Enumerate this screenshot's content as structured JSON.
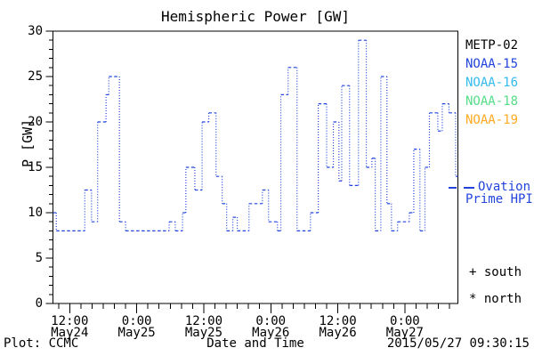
{
  "title": "Hemispheric Power [GW]",
  "footer": {
    "left": "Plot: CCMC",
    "center": "Date and Time",
    "right": "2015/05/27 09:30:15"
  },
  "legend": {
    "satellites": [
      {
        "label": "METP-02",
        "color": "#000000"
      },
      {
        "label": "NOAA-15",
        "color": "#2244dd"
      },
      {
        "label": "NOAA-16",
        "color": "#33bbee"
      },
      {
        "label": "NOAA-18",
        "color": "#55dd88"
      },
      {
        "label": "NOAA-19",
        "color": "#ffaa22"
      }
    ],
    "series_label_line1": "Ovation",
    "series_label_line2": "Prime HPI",
    "series_label_color": "#2244dd",
    "south_label": "+ south",
    "north_label": "* north"
  },
  "chart_data": {
    "type": "line",
    "style": "dotted-step",
    "title": "Hemispheric Power [GW]",
    "xlabel": "Date and Time",
    "ylabel": "P [GW]",
    "ylim": [
      0,
      30
    ],
    "y_major_ticks": [
      0,
      5,
      10,
      15,
      20,
      25,
      30
    ],
    "y_minor_step": 1,
    "grid": false,
    "legend_position": "right",
    "x_range_hours": [
      0,
      72.5
    ],
    "x_minor_step_hours": 2,
    "x_minor_first_hour": 1,
    "x_major_ticks": [
      {
        "hour": 3,
        "time": "12:00",
        "date": "May24"
      },
      {
        "hour": 15,
        "time": "0:00",
        "date": "May25"
      },
      {
        "hour": 27,
        "time": "12:00",
        "date": "May25"
      },
      {
        "hour": 39,
        "time": "0:00",
        "date": "May26"
      },
      {
        "hour": 51,
        "time": "12:00",
        "date": "May26"
      },
      {
        "hour": 63,
        "time": "0:00",
        "date": "May27"
      }
    ],
    "series": [
      {
        "name": "Ovation Prime HPI",
        "color": "#2244dd",
        "step_start_hours": [
          0,
          0.6,
          5.7,
          6.9,
          8.0,
          9.5,
          10.0,
          11.9,
          13.0,
          20.8,
          21.9,
          23.2,
          23.8,
          25.4,
          26.7,
          27.9,
          29.2,
          30.3,
          31.1,
          32.2,
          33.0,
          35.1,
          37.5,
          38.6,
          40.2,
          40.8,
          42.1,
          43.7,
          46.1,
          47.5,
          49.0,
          50.2,
          51.2,
          51.7,
          53.1,
          54.7,
          56.1,
          57.1,
          57.7,
          58.7,
          59.8,
          60.6,
          61.7,
          63.8,
          64.6,
          65.7,
          66.6,
          67.4,
          68.9,
          69.7,
          70.9,
          72.1
        ],
        "values_gw": [
          10,
          8,
          12.5,
          9,
          20,
          23,
          25,
          9,
          8,
          9,
          8,
          10,
          15,
          12.5,
          20,
          21,
          14,
          11,
          8,
          9.5,
          8,
          11,
          12.5,
          9,
          8,
          23,
          26,
          8,
          10,
          22,
          15,
          20,
          13.5,
          24,
          13,
          29,
          15,
          16,
          8,
          25,
          11,
          8,
          9,
          10,
          17,
          8,
          15,
          21,
          19,
          22,
          21,
          14
        ],
        "end_hour": 72.5
      }
    ]
  }
}
